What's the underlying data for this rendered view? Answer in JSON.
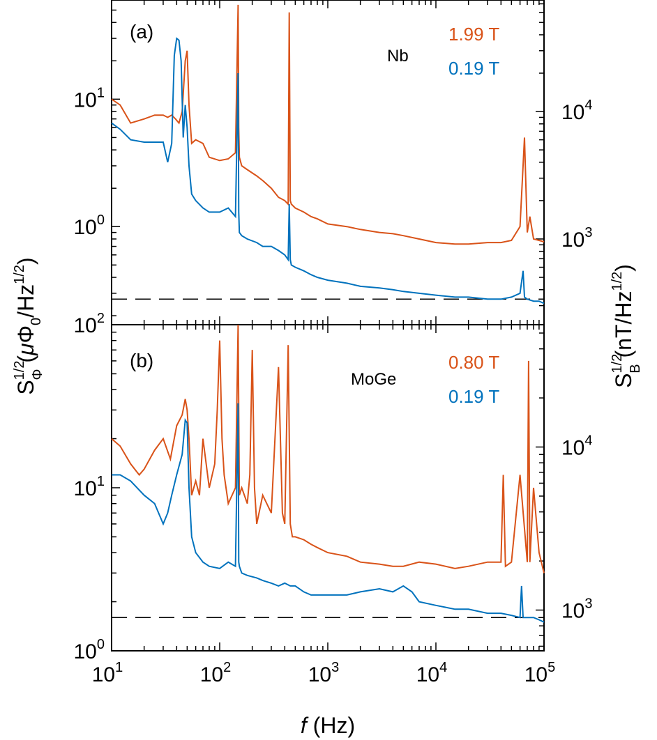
{
  "figure": {
    "ylabel_left": "S_Φ^1/2 (μΦ_0/Hz^1/2)",
    "ylabel_right": "S_B^1/2 (nT/Hz^1/2)",
    "xlabel": "f (Hz)"
  },
  "colors": {
    "orange": "#d95319",
    "blue": "#0072bd",
    "frame": "#000000",
    "dashed": "#000000"
  },
  "chart_data": [
    {
      "type": "line",
      "panel_label": "(a)",
      "material_label": "Nb",
      "x_scale": "log",
      "y_scale": "log",
      "xlim": [
        10,
        100000
      ],
      "ylim": [
        0.17,
        60
      ],
      "y_right_ticks": [
        1000,
        10000
      ],
      "y_right_tick_labels": [
        [
          "10",
          "3"
        ],
        [
          "10",
          "4"
        ]
      ],
      "y_left_ticks": [
        1,
        10
      ],
      "y_left_tick_labels": [
        [
          "10",
          "0"
        ],
        [
          "10",
          "1"
        ]
      ],
      "dashed_level": 0.27,
      "series": [
        {
          "name": "1.99 T",
          "color": "#d95319",
          "x": [
            10,
            12,
            15,
            20,
            25,
            30,
            33,
            36,
            39,
            42,
            45,
            48,
            50,
            52,
            55,
            60,
            70,
            80,
            100,
            120,
            140,
            148,
            150,
            152,
            160,
            180,
            220,
            250,
            300,
            350,
            400,
            430,
            440,
            450,
            460,
            500,
            600,
            700,
            800,
            1000,
            1500,
            2000,
            3000,
            4000,
            5000,
            7000,
            10000,
            15000,
            20000,
            30000,
            40000,
            50000,
            60000,
            66000,
            70000,
            74000,
            80000,
            90000,
            100000
          ],
          "y": [
            10,
            9,
            6.5,
            7,
            7.5,
            7.5,
            7.2,
            7.5,
            7,
            6.5,
            8,
            20,
            24,
            9,
            4.5,
            4.8,
            4.5,
            3.5,
            3.3,
            3.4,
            3.8,
            55,
            6,
            3.5,
            3.0,
            2.8,
            2.5,
            2.3,
            2.0,
            1.7,
            1.6,
            1.5,
            48,
            1.6,
            1.5,
            1.4,
            1.3,
            1.2,
            1.15,
            1.05,
            1.0,
            0.95,
            0.9,
            0.88,
            0.85,
            0.8,
            0.75,
            0.73,
            0.73,
            0.75,
            0.75,
            0.78,
            1.0,
            5.0,
            0.9,
            1.2,
            0.8,
            0.78,
            0.76
          ]
        },
        {
          "name": "0.19 T",
          "color": "#0072bd",
          "x": [
            10,
            12,
            15,
            20,
            25,
            30,
            33,
            36,
            38,
            40,
            42,
            44,
            46,
            48,
            50,
            52,
            55,
            60,
            70,
            80,
            100,
            120,
            140,
            148,
            150,
            152,
            160,
            180,
            220,
            250,
            300,
            350,
            400,
            430,
            440,
            450,
            460,
            500,
            600,
            700,
            800,
            1000,
            1500,
            2000,
            3000,
            4000,
            5000,
            7000,
            10000,
            15000,
            20000,
            30000,
            40000,
            50000,
            60000,
            64000,
            66000,
            70000,
            80000,
            90000,
            100000
          ],
          "y": [
            6.5,
            5.8,
            4.8,
            4.6,
            4.6,
            4.6,
            3.2,
            4.5,
            22,
            30,
            29,
            20,
            5,
            9,
            6,
            3.0,
            1.8,
            1.6,
            1.4,
            1.3,
            1.3,
            1.4,
            1.2,
            16,
            1.3,
            0.9,
            0.85,
            0.8,
            0.75,
            0.7,
            0.7,
            0.65,
            0.6,
            0.55,
            1.5,
            0.55,
            0.5,
            0.48,
            0.45,
            0.42,
            0.4,
            0.38,
            0.36,
            0.34,
            0.33,
            0.32,
            0.31,
            0.3,
            0.29,
            0.28,
            0.28,
            0.27,
            0.27,
            0.28,
            0.3,
            0.45,
            0.28,
            0.27,
            0.26,
            0.26,
            0.25
          ]
        }
      ]
    },
    {
      "type": "line",
      "panel_label": "(b)",
      "material_label": "MoGe",
      "x_scale": "log",
      "y_scale": "log",
      "xlim": [
        10,
        100000
      ],
      "ylim": [
        1,
        100
      ],
      "y_right_ticks": [
        1000,
        10000
      ],
      "y_right_tick_labels": [
        [
          "10",
          "3"
        ],
        [
          "10",
          "4"
        ]
      ],
      "y_left_ticks": [
        1,
        10,
        100
      ],
      "y_left_tick_labels": [
        [
          "10",
          "0"
        ],
        [
          "10",
          "1"
        ],
        [
          "10",
          "2"
        ]
      ],
      "dashed_level": 1.6,
      "series": [
        {
          "name": "0.80 T",
          "color": "#d95319",
          "x": [
            10,
            12,
            15,
            18,
            20,
            25,
            30,
            35,
            40,
            45,
            48,
            50,
            52,
            55,
            60,
            65,
            70,
            80,
            90,
            95,
            100,
            105,
            110,
            120,
            140,
            148,
            150,
            152,
            160,
            180,
            190,
            200,
            210,
            220,
            250,
            300,
            350,
            380,
            400,
            430,
            450,
            470,
            500,
            600,
            700,
            800,
            1000,
            1500,
            2000,
            3000,
            4000,
            5000,
            7000,
            10000,
            15000,
            20000,
            30000,
            40000,
            42000,
            44000,
            50000,
            60000,
            70000,
            72000,
            74000,
            80000,
            90000,
            100000
          ],
          "y": [
            20,
            18,
            14,
            12,
            13,
            17,
            20,
            15,
            24,
            28,
            35,
            30,
            20,
            9,
            11,
            9,
            20,
            10,
            14,
            30,
            80,
            20,
            12,
            8,
            10,
            100,
            30,
            9,
            10,
            8,
            12,
            70,
            10,
            6,
            9,
            7,
            55,
            7,
            6,
            75,
            6,
            5,
            5,
            4.8,
            4.5,
            4.3,
            4.0,
            3.8,
            3.5,
            3.4,
            3.3,
            3.3,
            3.5,
            3.4,
            3.2,
            3.3,
            3.5,
            3.5,
            12,
            3.3,
            3.5,
            12,
            3.5,
            60,
            3.5,
            10,
            4,
            3
          ]
        },
        {
          "name": "0.19 T",
          "color": "#0072bd",
          "x": [
            10,
            12,
            15,
            20,
            25,
            30,
            33,
            36,
            40,
            45,
            48,
            50,
            52,
            55,
            60,
            70,
            80,
            100,
            120,
            140,
            148,
            150,
            152,
            160,
            180,
            220,
            250,
            300,
            350,
            400,
            450,
            500,
            600,
            700,
            800,
            1000,
            1500,
            2000,
            3000,
            4000,
            5000,
            6000,
            7000,
            10000,
            15000,
            20000,
            30000,
            40000,
            50000,
            60000,
            62000,
            64000,
            70000,
            80000,
            90000,
            100000
          ],
          "y": [
            12,
            12,
            11,
            9,
            8,
            6,
            7,
            9,
            12,
            16,
            26,
            25,
            10,
            5,
            4,
            3.5,
            3.3,
            3.2,
            3.5,
            3.3,
            33,
            3.5,
            3.3,
            3.0,
            2.9,
            2.8,
            2.7,
            2.6,
            2.5,
            2.6,
            2.5,
            2.5,
            2.3,
            2.2,
            2.2,
            2.2,
            2.2,
            2.3,
            2.4,
            2.3,
            2.5,
            2.3,
            2.0,
            1.9,
            1.8,
            1.8,
            1.7,
            1.7,
            1.65,
            1.6,
            2.5,
            1.6,
            1.6,
            1.6,
            1.55,
            1.5
          ]
        }
      ]
    }
  ],
  "x_tick_labels": [
    [
      "10",
      "1"
    ],
    [
      "10",
      "2"
    ],
    [
      "10",
      "3"
    ],
    [
      "10",
      "4"
    ],
    [
      "10",
      "5"
    ]
  ]
}
